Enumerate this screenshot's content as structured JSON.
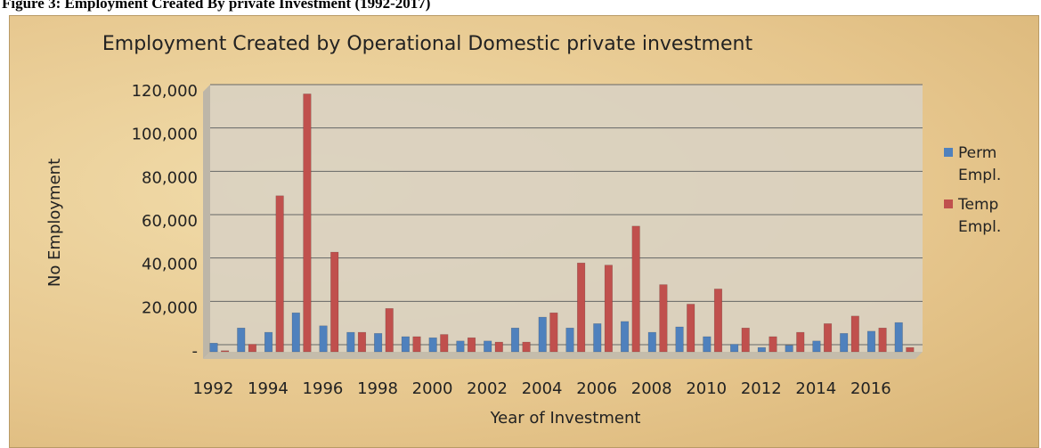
{
  "caption": "Figure 3: Employment Created By private Investment (1992-2017)",
  "chart_data": {
    "type": "bar",
    "title": "Employment Created by Operational Domestic private investment",
    "x_label": "Year of Investment",
    "y_label": "No Employment",
    "categories": [
      "1992",
      null,
      "1994",
      null,
      "1996",
      null,
      "1998",
      null,
      "2000",
      null,
      "2002",
      null,
      "2004",
      null,
      "2006",
      null,
      "2008",
      null,
      "2010",
      null,
      "2012",
      null,
      "2014",
      null,
      "2016",
      null
    ],
    "series": [
      {
        "name": "Perm Empl.",
        "color": "#4f81bd",
        "values": [
          4000,
          11000,
          9000,
          18000,
          12000,
          9000,
          8500,
          7000,
          6500,
          5000,
          5000,
          11000,
          16000,
          11000,
          13000,
          14000,
          9000,
          11500,
          7000,
          3500,
          2000,
          3000,
          5000,
          8500,
          9500,
          13500
        ]
      },
      {
        "name": "Temp Empl.",
        "color": "#c0504d",
        "values": [
          500,
          3500,
          72000,
          119000,
          46000,
          9000,
          20000,
          7000,
          8000,
          6500,
          4500,
          4500,
          18000,
          41000,
          40000,
          58000,
          31000,
          22000,
          29000,
          11000,
          7000,
          9000,
          13000,
          16500,
          11000,
          2000
        ]
      }
    ],
    "ylim": [
      0,
      120000
    ],
    "yticks": [
      {
        "value": 0,
        "label": "-"
      },
      {
        "value": 20000,
        "label": "20,000"
      },
      {
        "value": 40000,
        "label": "40,000"
      },
      {
        "value": 60000,
        "label": "60,000"
      },
      {
        "value": 80000,
        "label": "80,000"
      },
      {
        "value": 100000,
        "label": "100,000"
      },
      {
        "value": 120000,
        "label": "120,000"
      }
    ],
    "grid": true,
    "legend": "right"
  }
}
